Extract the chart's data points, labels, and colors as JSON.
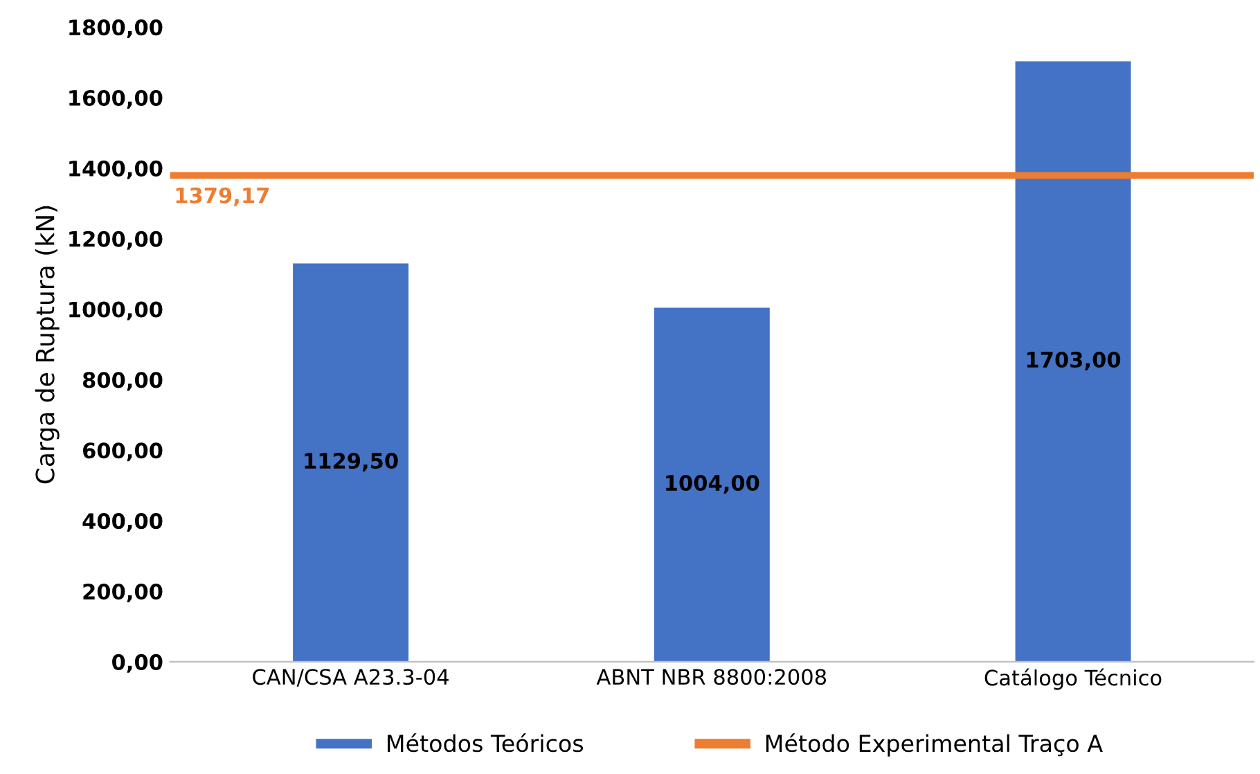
{
  "chart_data": {
    "type": "bar",
    "ylabel": "Carga de Ruptura (kN)",
    "categories": [
      "CAN/CSA A23.3-04",
      "ABNT NBR 8800:2008",
      "Catálogo Técnico"
    ],
    "series": [
      {
        "name": "Métodos Teóricos",
        "color": "#4472c4",
        "values": [
          1129.5,
          1004.0,
          1703.0
        ],
        "value_labels": [
          "1129,50",
          "1004,00",
          "1703,00"
        ]
      }
    ],
    "ylim": [
      0,
      1800
    ],
    "yticks": [
      {
        "value": 0,
        "label": "0,00"
      },
      {
        "value": 200,
        "label": "200,00"
      },
      {
        "value": 400,
        "label": "400,00"
      },
      {
        "value": 600,
        "label": "600,00"
      },
      {
        "value": 800,
        "label": "800,00"
      },
      {
        "value": 1000,
        "label": "1000,00"
      },
      {
        "value": 1200,
        "label": "1200,00"
      },
      {
        "value": 1400,
        "label": "1400,00"
      },
      {
        "value": 1600,
        "label": "1600,00"
      },
      {
        "value": 1800,
        "label": "1800,00"
      }
    ],
    "ref_lines": [
      {
        "axis": "y",
        "value": 1379.17,
        "label": "Método Experimental Traço A",
        "color": "#ed7d31",
        "line_style": "solid"
      }
    ],
    "annotations": [
      {
        "text": "1379,17",
        "y": 1379.17
      }
    ],
    "grid": false,
    "legend": "bottom"
  }
}
